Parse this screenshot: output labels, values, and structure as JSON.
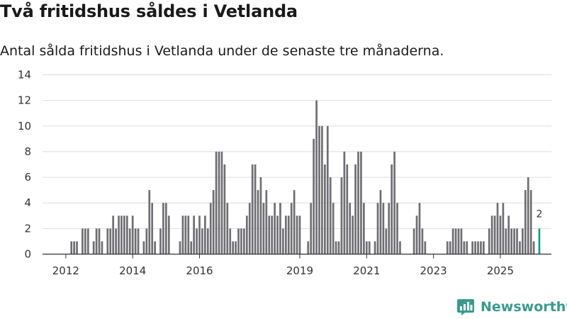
{
  "title": "Två fritidshus såldes i Vetlanda",
  "subtitle": "Antal sålda fritidshus i Vetlanda under de senaste tre månaderna.",
  "brand": {
    "name": "Newsworthy",
    "icon": "newsworthy-logo-icon",
    "color": "#3a9a8f"
  },
  "colors": {
    "bar": "#6e6e73",
    "highlight": "#1a9a8c",
    "grid": "#dddddd",
    "axis": "#333333"
  },
  "chart_data": {
    "type": "bar",
    "title": "Två fritidshus såldes i Vetlanda",
    "xlabel": "",
    "ylabel": "",
    "ylim": [
      0,
      14
    ],
    "yticks": [
      0,
      2,
      4,
      6,
      8,
      10,
      12,
      14
    ],
    "grid": true,
    "start": "2011-07",
    "xticks": [
      {
        "label": "2012",
        "index": 7
      },
      {
        "label": "2014",
        "index": 31
      },
      {
        "label": "2016",
        "index": 55
      },
      {
        "label": "2019",
        "index": 91
      },
      {
        "label": "2021",
        "index": 115
      },
      {
        "label": "2023",
        "index": 139
      },
      {
        "label": "2025",
        "index": 163
      }
    ],
    "values": [
      0,
      0,
      0,
      0,
      0,
      0,
      0,
      0,
      0,
      1,
      1,
      1,
      0,
      2,
      2,
      2,
      0,
      1,
      2,
      2,
      1,
      0,
      2,
      2,
      3,
      2,
      3,
      3,
      3,
      3,
      2,
      3,
      2,
      2,
      0,
      1,
      2,
      5,
      4,
      1,
      0,
      2,
      4,
      4,
      3,
      0,
      0,
      0,
      1,
      3,
      3,
      3,
      1,
      3,
      2,
      3,
      2,
      3,
      2,
      4,
      5,
      8,
      8,
      8,
      7,
      4,
      2,
      1,
      1,
      2,
      2,
      2,
      3,
      4,
      7,
      7,
      5,
      6,
      4,
      5,
      3,
      3,
      4,
      3,
      4,
      2,
      3,
      3,
      4,
      5,
      3,
      3,
      0,
      0,
      1,
      4,
      9,
      12,
      10,
      10,
      7,
      10,
      6,
      4,
      1,
      1,
      6,
      8,
      7,
      4,
      3,
      7,
      8,
      8,
      4,
      1,
      1,
      0,
      1,
      4,
      5,
      4,
      2,
      4,
      7,
      8,
      4,
      1,
      0,
      0,
      0,
      0,
      2,
      3,
      4,
      2,
      1,
      0,
      0,
      0,
      0,
      0,
      0,
      0,
      1,
      1,
      2,
      2,
      2,
      2,
      1,
      1,
      0,
      1,
      1,
      1,
      1,
      1,
      0,
      2,
      3,
      3,
      4,
      3,
      4,
      2,
      3,
      2,
      2,
      2,
      1,
      2,
      5,
      6,
      5,
      1,
      0,
      2
    ],
    "highlight_index": 177,
    "annotation": {
      "text": "2",
      "index": 177
    }
  }
}
